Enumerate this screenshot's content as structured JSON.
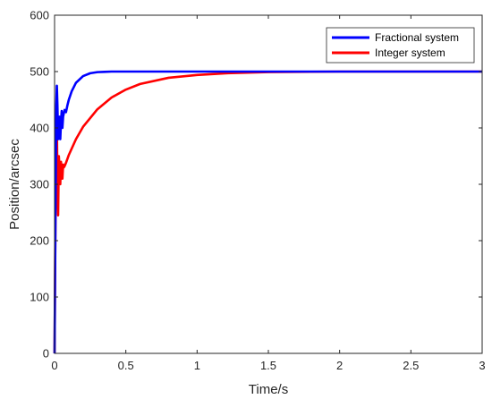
{
  "chart_data": {
    "type": "line",
    "title": "",
    "xlabel": "Time/s",
    "ylabel": "Position/arcsec",
    "xlim": [
      0,
      3
    ],
    "ylim": [
      0,
      600
    ],
    "xticks": [
      0,
      0.5,
      1,
      1.5,
      2,
      2.5,
      3
    ],
    "xtick_labels": [
      "0",
      "0.5",
      "1",
      "1.5",
      "2",
      "2.5",
      "3"
    ],
    "yticks": [
      0,
      100,
      200,
      300,
      400,
      500,
      600
    ],
    "ytick_labels": [
      "0",
      "100",
      "200",
      "300",
      "400",
      "500",
      "600"
    ],
    "grid": false,
    "legend_position": "top-right",
    "series": [
      {
        "name": "Fractional system",
        "color": "#0000ff",
        "x": [
          0,
          0.008,
          0.012,
          0.016,
          0.02,
          0.025,
          0.03,
          0.035,
          0.04,
          0.045,
          0.05,
          0.055,
          0.06,
          0.07,
          0.08,
          0.09,
          0.1,
          0.12,
          0.15,
          0.2,
          0.25,
          0.3,
          0.35,
          0.4,
          0.5,
          0.6,
          0.7,
          0.8,
          1.0,
          1.5,
          2.0,
          2.5,
          3.0
        ],
        "y": [
          0,
          300,
          440,
          475,
          440,
          380,
          400,
          420,
          380,
          410,
          430,
          400,
          420,
          432,
          428,
          440,
          450,
          465,
          480,
          492,
          497,
          499,
          499.5,
          500,
          500,
          500,
          500,
          500,
          500,
          500,
          500,
          500,
          500
        ]
      },
      {
        "name": "Integer system",
        "color": "#ff0000",
        "x": [
          0,
          0.005,
          0.01,
          0.015,
          0.02,
          0.025,
          0.03,
          0.035,
          0.04,
          0.045,
          0.05,
          0.055,
          0.06,
          0.065,
          0.07,
          0.08,
          0.09,
          0.1,
          0.15,
          0.2,
          0.3,
          0.4,
          0.5,
          0.6,
          0.8,
          1.0,
          1.2,
          1.5,
          2.0,
          2.5,
          3.0
        ],
        "y": [
          0,
          200,
          330,
          440,
          300,
          245,
          350,
          330,
          300,
          340,
          320,
          310,
          335,
          330,
          332,
          338,
          345,
          352,
          380,
          402,
          433,
          454,
          468,
          478,
          489,
          494,
          497,
          499,
          500,
          500,
          500
        ]
      }
    ]
  }
}
